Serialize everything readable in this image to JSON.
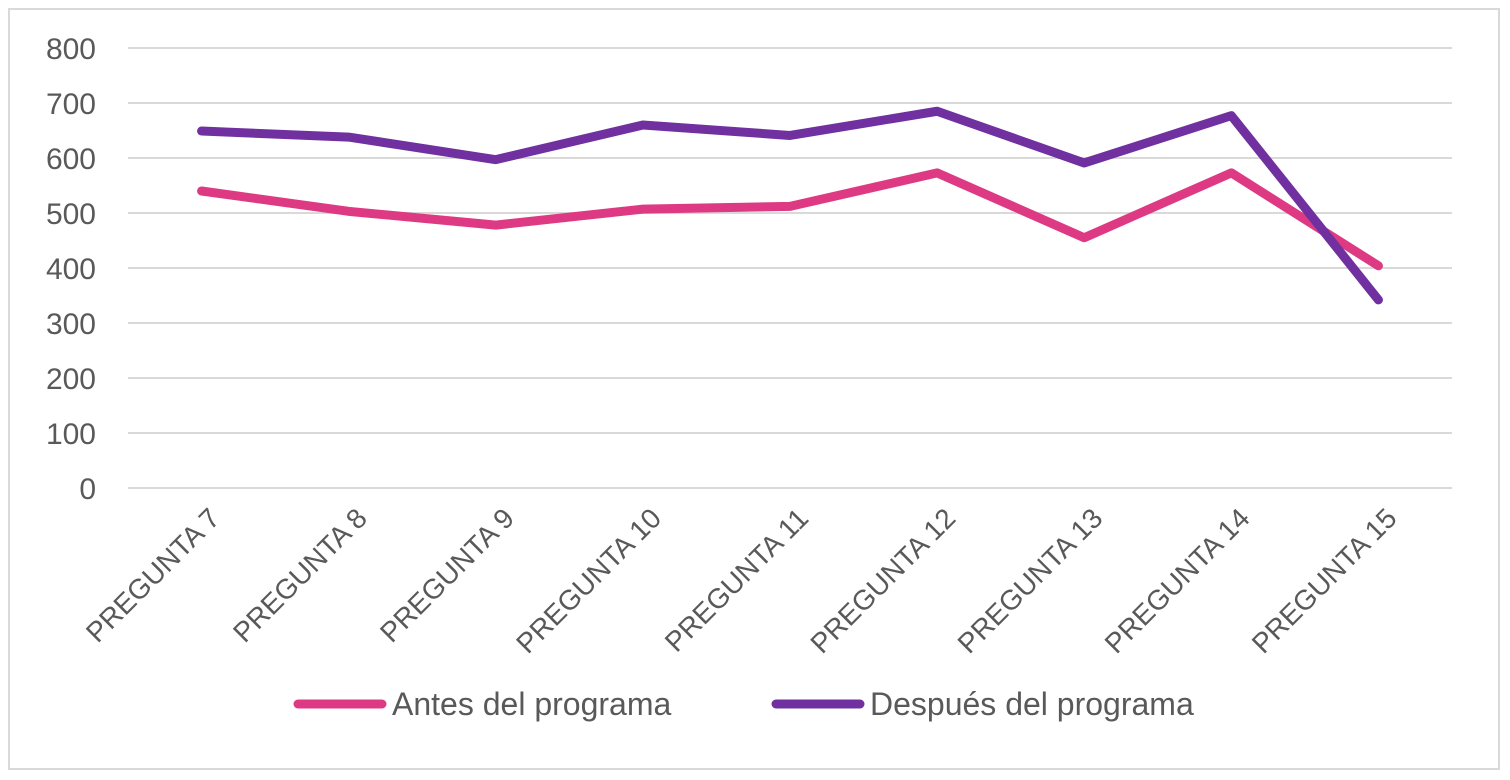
{
  "chart_data": {
    "type": "line",
    "title": "",
    "xlabel": "",
    "ylabel": "",
    "categories": [
      "PREGUNTA 7",
      "PREGUNTA 8",
      "PREGUNTA 9",
      "PREGUNTA 10",
      "PREGUNTA 11",
      "PREGUNTA 12",
      "PREGUNTA 13",
      "PREGUNTA 14",
      "PREGUNTA 15"
    ],
    "ylim": [
      0,
      800
    ],
    "yticks": [
      0,
      100,
      200,
      300,
      400,
      500,
      600,
      700,
      800
    ],
    "grid": true,
    "legend_position": "bottom",
    "series": [
      {
        "name": "Antes del programa",
        "color": "#de3a84",
        "values": [
          540,
          503,
          478,
          507,
          512,
          573,
          455,
          573,
          404
        ]
      },
      {
        "name": "Después del programa",
        "color": "#7030a0",
        "values": [
          649,
          638,
          597,
          660,
          641,
          685,
          591,
          677,
          342
        ]
      }
    ]
  }
}
